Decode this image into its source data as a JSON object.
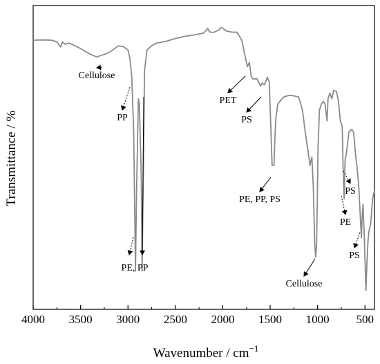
{
  "chart_data": {
    "type": "line",
    "xlabel": "Wavenumber / cm",
    "xlabel_sup": "−1",
    "ylabel": "Transmittance / %",
    "xlim": [
      4000,
      400
    ],
    "x_reversed": true,
    "ylim": [
      0,
      100
    ],
    "y_ticks_shown": false,
    "grid": false,
    "legend": "none",
    "line_color": "#8a8a8a",
    "x_ticks": [
      {
        "value": 4000,
        "label": "4000"
      },
      {
        "value": 3500,
        "label": "3500"
      },
      {
        "value": 3000,
        "label": "3000"
      },
      {
        "value": 2500,
        "label": "2500"
      },
      {
        "value": 2000,
        "label": "2000"
      },
      {
        "value": 1500,
        "label": "1500"
      },
      {
        "value": 1000,
        "label": "1000"
      },
      {
        "value": 500,
        "label": "500"
      }
    ],
    "series": [
      {
        "points": [
          [
            4000,
            93.0
          ],
          [
            3900,
            93.1
          ],
          [
            3800,
            93.0
          ],
          [
            3750,
            92.4
          ],
          [
            3710,
            90.6
          ],
          [
            3690,
            92.4
          ],
          [
            3660,
            91.5
          ],
          [
            3630,
            92.0
          ],
          [
            3600,
            91.7
          ],
          [
            3500,
            90.0
          ],
          [
            3400,
            88.0
          ],
          [
            3330,
            87.0
          ],
          [
            3200,
            88.5
          ],
          [
            3100,
            91.0
          ],
          [
            3050,
            90.7
          ],
          [
            3000,
            89.5
          ],
          [
            2980,
            86.5
          ],
          [
            2960,
            80.0
          ],
          [
            2940,
            60.0
          ],
          [
            2930,
            35.0
          ],
          [
            2921,
            10.0
          ],
          [
            2910,
            38.0
          ],
          [
            2890,
            72.0
          ],
          [
            2880,
            70.0
          ],
          [
            2860,
            45.0
          ],
          [
            2851,
            10.0
          ],
          [
            2840,
            40.0
          ],
          [
            2825,
            82.0
          ],
          [
            2800,
            89.5
          ],
          [
            2750,
            91.0
          ],
          [
            2700,
            92.0
          ],
          [
            2600,
            92.6
          ],
          [
            2500,
            93.6
          ],
          [
            2400,
            94.4
          ],
          [
            2300,
            94.9
          ],
          [
            2200,
            95.6
          ],
          [
            2160,
            97.3
          ],
          [
            2140,
            96.0
          ],
          [
            2100,
            95.8
          ],
          [
            2040,
            96.7
          ],
          [
            2020,
            97.6
          ],
          [
            2000,
            97.3
          ],
          [
            1960,
            96.3
          ],
          [
            1900,
            95.9
          ],
          [
            1850,
            95.9
          ],
          [
            1800,
            93.0
          ],
          [
            1760,
            86.5
          ],
          [
            1740,
            83.5
          ],
          [
            1720,
            85.0
          ],
          [
            1700,
            80.0
          ],
          [
            1680,
            79.0
          ],
          [
            1640,
            79.2
          ],
          [
            1601,
            76.5
          ],
          [
            1585,
            77.6
          ],
          [
            1560,
            77.0
          ],
          [
            1530,
            79.7
          ],
          [
            1510,
            78.0
          ],
          [
            1492,
            60.0
          ],
          [
            1480,
            48.0
          ],
          [
            1460,
            48.0
          ],
          [
            1452,
            56.0
          ],
          [
            1440,
            65.0
          ],
          [
            1420,
            70.0
          ],
          [
            1375,
            72.0
          ],
          [
            1350,
            72.7
          ],
          [
            1300,
            73.2
          ],
          [
            1250,
            73.0
          ],
          [
            1200,
            72.6
          ],
          [
            1160,
            68.0
          ],
          [
            1130,
            60.0
          ],
          [
            1100,
            53.0
          ],
          [
            1080,
            48.0
          ],
          [
            1060,
            51.0
          ],
          [
            1045,
            40.0
          ],
          [
            1030,
            20.0
          ],
          [
            1020,
            15.0
          ],
          [
            1010,
            20.0
          ],
          [
            995,
            55.0
          ],
          [
            980,
            68.0
          ],
          [
            960,
            70.0
          ],
          [
            940,
            71.0
          ],
          [
            920,
            70.0
          ],
          [
            900,
            64.0
          ],
          [
            890,
            72.0
          ],
          [
            870,
            74.0
          ],
          [
            850,
            72.0
          ],
          [
            830,
            75.0
          ],
          [
            800,
            74.5
          ],
          [
            780,
            71.0
          ],
          [
            760,
            64.0
          ],
          [
            740,
            62.0
          ],
          [
            730,
            46.0
          ],
          [
            720,
            36.0
          ],
          [
            710,
            50.0
          ],
          [
            698,
            52.0
          ],
          [
            690,
            54.0
          ],
          [
            670,
            60.0
          ],
          [
            640,
            61.0
          ],
          [
            620,
            60.0
          ],
          [
            600,
            52.0
          ],
          [
            580,
            46.0
          ],
          [
            565,
            40.0
          ],
          [
            550,
            30.0
          ],
          [
            538,
            22.0
          ],
          [
            530,
            30.0
          ],
          [
            520,
            34.0
          ],
          [
            505,
            20.0
          ],
          [
            490,
            3.0
          ],
          [
            480,
            12.0
          ],
          [
            470,
            20.0
          ],
          [
            460,
            24.0
          ],
          [
            440,
            27.0
          ],
          [
            420,
            36.0
          ],
          [
            400,
            39.0
          ]
        ]
      }
    ],
    "annotations": [
      {
        "text": "Cellulose",
        "x": 3330,
        "y": 87.0
      },
      {
        "text": "PP",
        "x": 2965,
        "y": 81.0
      },
      {
        "text": "PET",
        "x": 1700,
        "y": 85.0
      },
      {
        "text": "PS",
        "x": 1601,
        "y": 76.5
      },
      {
        "text": "PE, PP, PS",
        "x": 1452,
        "y": 51.0
      },
      {
        "text": "PS",
        "x": 698,
        "y": 45.0
      },
      {
        "text": "PE",
        "x": 720,
        "y": 36.0
      },
      {
        "text": "PS",
        "x": 538,
        "y": 22.0
      },
      {
        "text": "Cellulose",
        "x": 1020,
        "y": 15.0
      },
      {
        "text": "PE, PP",
        "x": 2921,
        "y": 23.0
      }
    ]
  }
}
